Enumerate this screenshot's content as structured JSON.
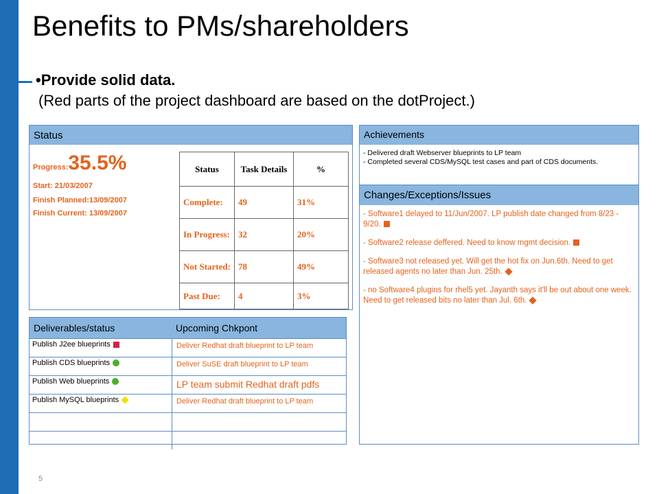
{
  "title": "Benefits to PMs/shareholders",
  "bullet": "•Provide solid data.",
  "subline": "(Red parts of the project dashboard are based on the dotProject.)",
  "status": {
    "header": "Status",
    "progress_label": "Progress:",
    "progress_value": "35.5%",
    "start": "Start:  21/03/2007",
    "finish_planned": "Finish Planned:13/09/2007",
    "finish_current": "Finish Current:  13/09/2007",
    "table": {
      "headers": [
        "Status",
        "Task Details",
        "%"
      ],
      "rows": [
        {
          "label": "Complete:",
          "tasks": "49",
          "pct": "31%"
        },
        {
          "label": "In Progress:",
          "tasks": "32",
          "pct": "20%"
        },
        {
          "label": "Not Started:",
          "tasks": "78",
          "pct": "49%"
        },
        {
          "label": "Past Due:",
          "tasks": "4",
          "pct": "3%"
        }
      ]
    }
  },
  "achievements": {
    "header": "Achievements",
    "items": [
      "- Delivered draft Webserver blueprints to LP team",
      "- Completed several CDS/MySQL test cases and part of CDS documents."
    ]
  },
  "changes": {
    "header": "Changes/Exceptions/Issues",
    "items": [
      "- Software1 delayed to 11/Jun/2007. LP publish date changed from 8/23 - 9/20.",
      "- Software2 release deffered. Need to know mgmt decision.",
      "- Software3 not released yet. Will get the hot fix on Jun.6th. Need to get released agents no later than Jun. 25th.",
      "- no Software4 plugins for rhel5 yet. Jayanth says it'll be out about one week. Need to get released bits no later than Jul. 6th."
    ]
  },
  "deliverables": {
    "header_left": "Deliverables/status",
    "header_right": "Upcoming Chkpont",
    "rows": [
      {
        "deliverable": "Publish J2ee blueprints",
        "checkpoint": "Deliver Redhat draft blueprint to LP team"
      },
      {
        "deliverable": "Publish CDS blueprints",
        "checkpoint": "Deliver SuSE draft blueprint to LP team"
      },
      {
        "deliverable": "Publish Web blueprints",
        "checkpoint": "LP team submit Redhat draft pdfs"
      },
      {
        "deliverable": "Publish MySQL blueprints",
        "checkpoint": "Deliver Redhat draft blueprint to LP team"
      }
    ]
  },
  "page_number": "5",
  "colors": {
    "accent": "#1f6db5",
    "header_fill": "#89b5df",
    "highlight": "#e5621a",
    "status_red": "#d61f46",
    "status_green": "#4cae2c",
    "status_yellow": "#f5e100"
  },
  "status_icons": [
    "red-square-icon",
    "green-circle-icon",
    "green-circle-icon",
    "yellow-diamond-icon"
  ]
}
